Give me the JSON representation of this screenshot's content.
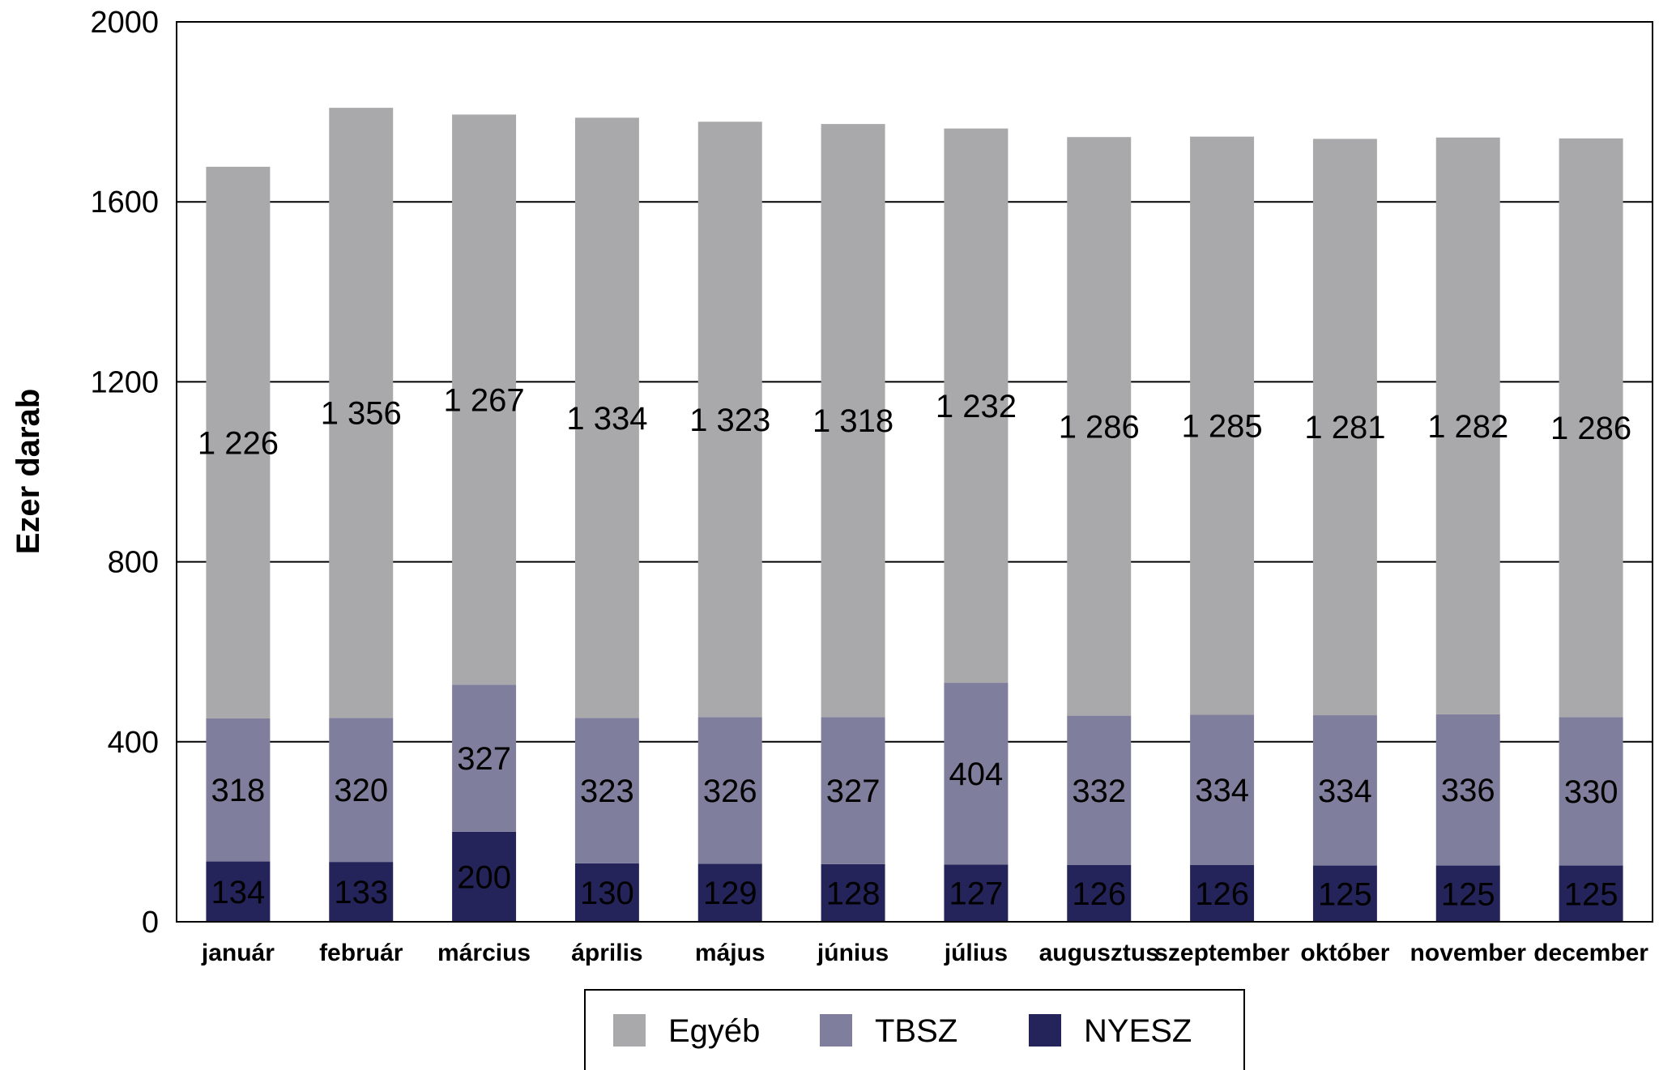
{
  "chart_data": {
    "type": "bar",
    "stacked": true,
    "title": "",
    "ylabel": "Ezer darab",
    "xlabel": "",
    "ylim": [
      0,
      2000
    ],
    "yticks": [
      0,
      400,
      800,
      1200,
      1600,
      2000
    ],
    "grid": true,
    "legend_position": "bottom",
    "categories": [
      "január",
      "február",
      "március",
      "április",
      "május",
      "június",
      "július",
      "augusztus",
      "szeptember",
      "október",
      "november",
      "december"
    ],
    "series": [
      {
        "name": "NYESZ",
        "color": "#25245a",
        "values": [
          134,
          133,
          200,
          130,
          129,
          128,
          127,
          126,
          126,
          125,
          125,
          125
        ],
        "labels": [
          "134",
          "133",
          "200",
          "130",
          "129",
          "128",
          "127",
          "126",
          "126",
          "125",
          "125",
          "125"
        ]
      },
      {
        "name": "TBSZ",
        "color": "#7f7e9d",
        "values": [
          318,
          320,
          327,
          323,
          326,
          327,
          404,
          332,
          334,
          334,
          336,
          330
        ],
        "labels": [
          "318",
          "320",
          "327",
          "323",
          "326",
          "327",
          "404",
          "332",
          "334",
          "334",
          "336",
          "330"
        ]
      },
      {
        "name": "Egyéb",
        "color": "#a9a9ab",
        "values": [
          1226,
          1356,
          1267,
          1334,
          1323,
          1318,
          1232,
          1286,
          1285,
          1281,
          1282,
          1286
        ],
        "labels": [
          "1 226",
          "1 356",
          "1 267",
          "1 334",
          "1 323",
          "1 318",
          "1 232",
          "1 286",
          "1 285",
          "1 281",
          "1 282",
          "1 286"
        ]
      }
    ],
    "legend_order": [
      "Egyéb",
      "TBSZ",
      "NYESZ"
    ]
  }
}
